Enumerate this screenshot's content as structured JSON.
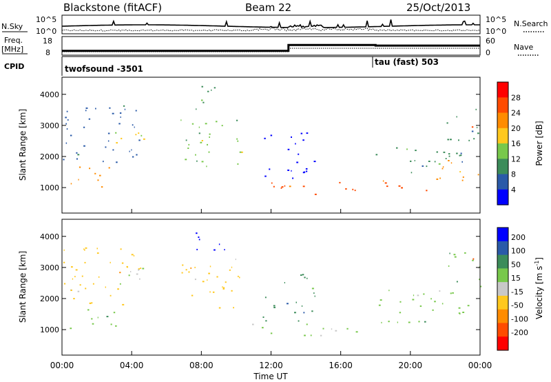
{
  "header": {
    "station": "Blackstone (fitACF)",
    "beam": "Beam 22",
    "date": "25/Oct/2013"
  },
  "noise_panel": {
    "left_label": "N.Sky",
    "right_label": "N.Search",
    "ticks_left": [
      "10^5",
      "10^0"
    ],
    "ticks_right": [
      "10^5",
      "10^0"
    ]
  },
  "freq_panel": {
    "left_label_1": "Freq.",
    "left_label_2": "[MHz]",
    "ticks_left": [
      "18",
      "8"
    ],
    "right_label": "Nave",
    "ticks_right": [
      "60",
      "0"
    ],
    "cpid_label": "CPID",
    "cpid_segments": [
      {
        "name": "twofsound  -3501",
        "start_hour": 0
      },
      {
        "name": "tau (fast) 503",
        "start_hour": 18
      }
    ],
    "freq_series": [
      {
        "start_hour": 0,
        "end_hour": 13,
        "freq_mhz": 10.5
      },
      {
        "start_hour": 13,
        "end_hour": 18,
        "freq_mhz": 15.5
      },
      {
        "start_hour": 18,
        "end_hour": 24,
        "freq_mhz": 15.0
      }
    ]
  },
  "colors": {
    "power_scale": [
      "#0000ff",
      "#2a5aa8",
      "#3c8c5a",
      "#78c84b",
      "#ffc81e",
      "#ff8c00",
      "#ff4b00",
      "#ff0000"
    ],
    "velocity_scale": [
      "#0000ff",
      "#2a5aa8",
      "#3c8c5a",
      "#78c84b",
      "#c8c8c8",
      "#ffc81e",
      "#ff8c00",
      "#ff4b00",
      "#ff0000"
    ]
  },
  "chart_data": [
    {
      "type": "heatmap",
      "name": "power",
      "ylabel": "Slant Range [km]",
      "ylim": [
        180,
        4550
      ],
      "xlim": [
        0,
        24
      ],
      "yticks": [
        1000,
        2000,
        3000,
        4000
      ],
      "colorbar": {
        "label": "Power [dB]",
        "ticks": [
          "4",
          "8",
          "12",
          "16",
          "20",
          "24",
          "28"
        ]
      },
      "bands": [
        {
          "t0": 0.0,
          "t1": 4.5,
          "r0": 1800,
          "r1": 3700,
          "level": 2
        },
        {
          "t0": 0.4,
          "t1": 3.2,
          "r0": 1000,
          "r1": 1700,
          "level": 6
        },
        {
          "t0": 3.0,
          "t1": 4.8,
          "r0": 2300,
          "r1": 3100,
          "level": 5
        },
        {
          "t0": 6.8,
          "t1": 10.5,
          "r0": 1700,
          "r1": 3300,
          "level": 4
        },
        {
          "t0": 7.5,
          "t1": 9.5,
          "r0": 3500,
          "r1": 4300,
          "level": 3
        },
        {
          "t0": 10.8,
          "t1": 15.0,
          "r0": 800,
          "r1": 1200,
          "level": 7
        },
        {
          "t0": 11.5,
          "t1": 14.5,
          "r0": 1300,
          "r1": 2800,
          "level": 1
        },
        {
          "t0": 15.2,
          "t1": 17.5,
          "r0": 800,
          "r1": 1200,
          "level": 7
        },
        {
          "t0": 18.0,
          "t1": 21.5,
          "r0": 900,
          "r1": 1300,
          "level": 7
        },
        {
          "t0": 18.0,
          "t1": 24.0,
          "r0": 1500,
          "r1": 2300,
          "level": 3
        },
        {
          "t0": 21.0,
          "t1": 24.0,
          "r0": 1200,
          "r1": 1900,
          "level": 6
        },
        {
          "t0": 22.0,
          "t1": 24.0,
          "r0": 2400,
          "r1": 3600,
          "level": 3
        },
        {
          "t0": 23.5,
          "t1": 24.0,
          "r0": 2900,
          "r1": 3300,
          "level": 7
        }
      ]
    },
    {
      "type": "heatmap",
      "name": "velocity",
      "ylabel": "Slant Range [km]",
      "ylim": [
        180,
        4550
      ],
      "xlim": [
        0,
        24
      ],
      "yticks": [
        1000,
        2000,
        3000,
        4000
      ],
      "xticks": [
        "00:00",
        "04:00",
        "08:00",
        "12:00",
        "16:00",
        "20:00",
        "00:00"
      ],
      "xlabel": "Time UT",
      "colorbar": {
        "label": "Velocity [m s",
        "label_sup": "-1",
        "label_end": "]",
        "ticks": [
          "200",
          "100",
          "50",
          "15",
          "-15",
          "-50",
          "-100",
          "-200"
        ]
      },
      "bands": [
        {
          "t0": 0.0,
          "t1": 4.5,
          "r0": 1800,
          "r1": 3700,
          "level": 6
        },
        {
          "t0": 0.4,
          "t1": 3.2,
          "r0": 1000,
          "r1": 1700,
          "level": 4
        },
        {
          "t0": 3.0,
          "t1": 4.8,
          "r0": 2300,
          "r1": 3100,
          "level": 5
        },
        {
          "t0": 6.8,
          "t1": 10.5,
          "r0": 1700,
          "r1": 3300,
          "level": 6
        },
        {
          "t0": 7.5,
          "t1": 9.5,
          "r0": 3500,
          "r1": 4300,
          "level": 1
        },
        {
          "t0": 10.8,
          "t1": 15.0,
          "r0": 800,
          "r1": 1200,
          "level": 4
        },
        {
          "t0": 11.5,
          "t1": 14.5,
          "r0": 1300,
          "r1": 2800,
          "level": 3
        },
        {
          "t0": 15.2,
          "t1": 17.5,
          "r0": 800,
          "r1": 1200,
          "level": 4
        },
        {
          "t0": 18.0,
          "t1": 21.5,
          "r0": 900,
          "r1": 1300,
          "level": 4
        },
        {
          "t0": 18.0,
          "t1": 24.0,
          "r0": 1500,
          "r1": 2300,
          "level": 4
        },
        {
          "t0": 22.0,
          "t1": 24.0,
          "r0": 2400,
          "r1": 3600,
          "level": 4
        },
        {
          "t0": 23.5,
          "t1": 24.0,
          "r0": 2900,
          "r1": 3300,
          "level": 8
        }
      ]
    }
  ]
}
